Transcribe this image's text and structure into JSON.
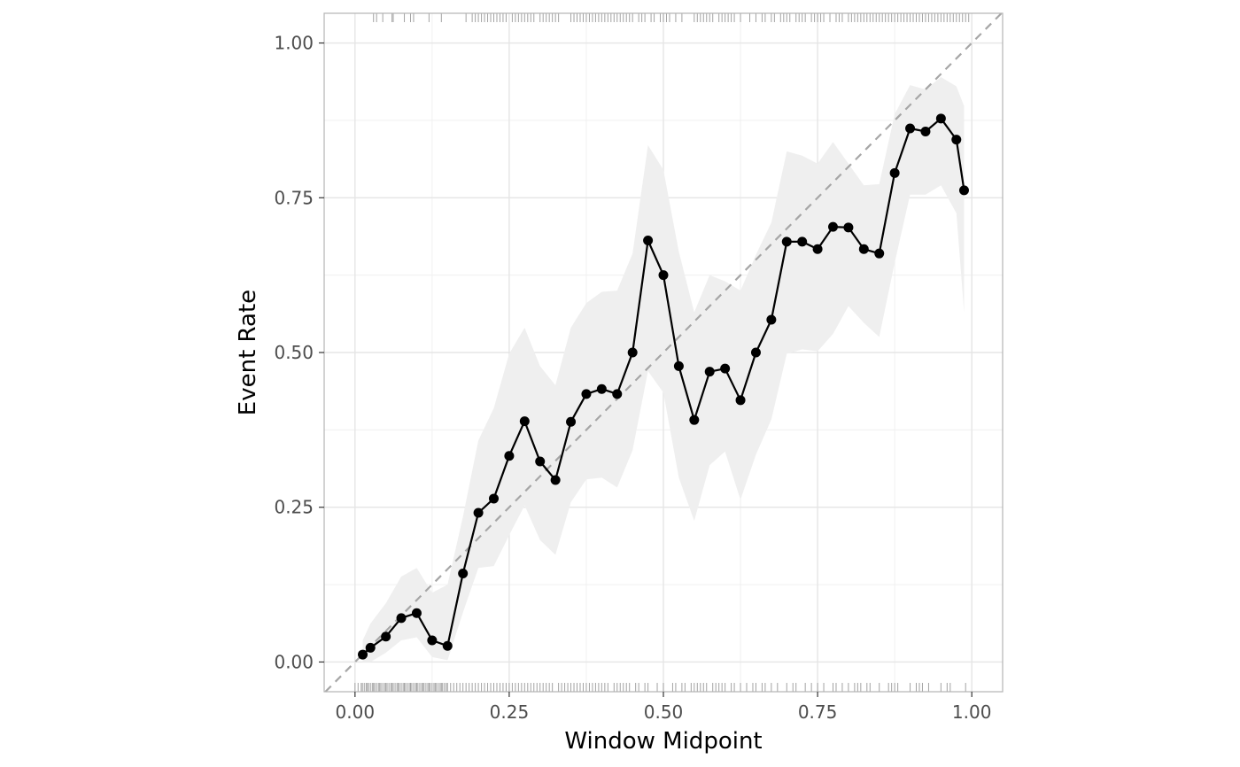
{
  "chart_data": {
    "type": "line",
    "xlabel": "Window Midpoint",
    "ylabel": "Event Rate",
    "xlim": [
      -0.05,
      1.05
    ],
    "ylim": [
      -0.048,
      1.048
    ],
    "x_ticks": [
      0.0,
      0.25,
      0.5,
      0.75,
      1.0
    ],
    "x_tick_labels": [
      "0.00",
      "0.25",
      "0.50",
      "0.75",
      "1.00"
    ],
    "y_ticks": [
      0.0,
      0.25,
      0.5,
      0.75,
      1.0
    ],
    "y_tick_labels": [
      "0.00",
      "0.25",
      "0.50",
      "0.75",
      "1.00"
    ],
    "grid": true,
    "reference_line": {
      "from": [
        0,
        0
      ],
      "to": [
        1,
        1
      ],
      "style": "dashed",
      "color": "#a6a6a6"
    },
    "colors": {
      "line": "#000000",
      "points": "#000000",
      "band": "#efefef",
      "grid": "#e5e5e5",
      "rug": "#a3a3a3",
      "panel_border": "#b3b3b3"
    },
    "series": [
      {
        "x": [
          0.0125,
          0.025,
          0.05,
          0.075,
          0.1,
          0.125,
          0.15,
          0.175,
          0.2,
          0.225,
          0.25,
          0.275,
          0.3,
          0.325,
          0.35,
          0.375,
          0.4,
          0.425,
          0.45,
          0.475,
          0.5,
          0.525,
          0.55,
          0.575,
          0.6,
          0.625,
          0.65,
          0.675,
          0.7,
          0.725,
          0.75,
          0.775,
          0.8,
          0.825,
          0.85,
          0.875,
          0.9,
          0.925,
          0.95,
          0.975,
          0.9875
        ],
        "y": [
          0.012,
          0.023,
          0.041,
          0.071,
          0.079,
          0.035,
          0.026,
          0.143,
          0.241,
          0.264,
          0.333,
          0.389,
          0.324,
          0.294,
          0.388,
          0.433,
          0.441,
          0.433,
          0.5,
          0.681,
          0.625,
          0.478,
          0.391,
          0.469,
          0.474,
          0.423,
          0.5,
          0.553,
          0.679,
          0.679,
          0.667,
          0.703,
          0.702,
          0.667,
          0.66,
          0.79,
          0.862,
          0.857,
          0.878,
          0.844,
          0.762
        ],
        "lower": [
          0.0,
          0.0,
          0.015,
          0.035,
          0.04,
          0.008,
          0.003,
          0.08,
          0.152,
          0.155,
          0.205,
          0.253,
          0.197,
          0.173,
          0.258,
          0.295,
          0.298,
          0.282,
          0.342,
          0.47,
          0.435,
          0.298,
          0.228,
          0.318,
          0.34,
          0.262,
          0.335,
          0.392,
          0.498,
          0.505,
          0.502,
          0.53,
          0.575,
          0.548,
          0.525,
          0.645,
          0.755,
          0.755,
          0.77,
          0.725,
          0.565
        ],
        "upper": [
          0.035,
          0.062,
          0.095,
          0.138,
          0.152,
          0.112,
          0.125,
          0.235,
          0.358,
          0.41,
          0.498,
          0.54,
          0.478,
          0.447,
          0.54,
          0.58,
          0.598,
          0.6,
          0.66,
          0.835,
          0.795,
          0.663,
          0.565,
          0.625,
          0.615,
          0.6,
          0.658,
          0.71,
          0.825,
          0.818,
          0.805,
          0.84,
          0.805,
          0.77,
          0.772,
          0.885,
          0.932,
          0.925,
          0.945,
          0.93,
          0.898
        ]
      }
    ],
    "rug_top": [
      0.03,
      0.035,
      0.045,
      0.06,
      0.062,
      0.08,
      0.09,
      0.095,
      0.12,
      0.14,
      0.18,
      0.19,
      0.195,
      0.2,
      0.205,
      0.21,
      0.215,
      0.22,
      0.225,
      0.23,
      0.235,
      0.24,
      0.245,
      0.255,
      0.26,
      0.265,
      0.27,
      0.275,
      0.28,
      0.285,
      0.29,
      0.3,
      0.305,
      0.31,
      0.315,
      0.32,
      0.325,
      0.33,
      0.35,
      0.355,
      0.36,
      0.365,
      0.37,
      0.375,
      0.38,
      0.385,
      0.39,
      0.395,
      0.4,
      0.405,
      0.41,
      0.415,
      0.42,
      0.425,
      0.43,
      0.435,
      0.44,
      0.445,
      0.45,
      0.46,
      0.465,
      0.47,
      0.48,
      0.485,
      0.495,
      0.5,
      0.505,
      0.51,
      0.52,
      0.53,
      0.55,
      0.555,
      0.56,
      0.565,
      0.57,
      0.575,
      0.58,
      0.59,
      0.595,
      0.6,
      0.605,
      0.61,
      0.615,
      0.625,
      0.64,
      0.65,
      0.66,
      0.665,
      0.675,
      0.68,
      0.69,
      0.695,
      0.7,
      0.705,
      0.715,
      0.72,
      0.725,
      0.73,
      0.74,
      0.745,
      0.75,
      0.755,
      0.76,
      0.77,
      0.78,
      0.785,
      0.79,
      0.8,
      0.805,
      0.81,
      0.815,
      0.82,
      0.825,
      0.83,
      0.835,
      0.84,
      0.845,
      0.85,
      0.855,
      0.86,
      0.865,
      0.87,
      0.875,
      0.88,
      0.885,
      0.89,
      0.895,
      0.9,
      0.905,
      0.91,
      0.915,
      0.92,
      0.925,
      0.93,
      0.935,
      0.94,
      0.945,
      0.95,
      0.955,
      0.96,
      0.965,
      0.97,
      0.975,
      0.98,
      0.985,
      0.99,
      0.995
    ],
    "rug_bottom": [
      0.0,
      0.005,
      0.01,
      0.012,
      0.015,
      0.018,
      0.02,
      0.022,
      0.025,
      0.028,
      0.03,
      0.032,
      0.035,
      0.038,
      0.04,
      0.042,
      0.045,
      0.048,
      0.05,
      0.052,
      0.055,
      0.058,
      0.06,
      0.062,
      0.065,
      0.068,
      0.07,
      0.072,
      0.075,
      0.078,
      0.08,
      0.082,
      0.085,
      0.088,
      0.09,
      0.092,
      0.095,
      0.098,
      0.1,
      0.102,
      0.105,
      0.108,
      0.11,
      0.112,
      0.115,
      0.118,
      0.12,
      0.122,
      0.125,
      0.128,
      0.13,
      0.132,
      0.135,
      0.138,
      0.14,
      0.142,
      0.145,
      0.148,
      0.15,
      0.155,
      0.16,
      0.165,
      0.17,
      0.175,
      0.18,
      0.185,
      0.19,
      0.195,
      0.2,
      0.205,
      0.21,
      0.215,
      0.22,
      0.225,
      0.23,
      0.235,
      0.24,
      0.245,
      0.25,
      0.255,
      0.26,
      0.265,
      0.27,
      0.275,
      0.28,
      0.285,
      0.29,
      0.295,
      0.3,
      0.305,
      0.31,
      0.315,
      0.32,
      0.33,
      0.335,
      0.34,
      0.345,
      0.35,
      0.355,
      0.36,
      0.365,
      0.37,
      0.375,
      0.38,
      0.385,
      0.39,
      0.395,
      0.4,
      0.405,
      0.41,
      0.42,
      0.425,
      0.43,
      0.435,
      0.44,
      0.445,
      0.455,
      0.46,
      0.47,
      0.475,
      0.49,
      0.5,
      0.515,
      0.52,
      0.53,
      0.535,
      0.545,
      0.55,
      0.555,
      0.56,
      0.565,
      0.57,
      0.58,
      0.585,
      0.59,
      0.595,
      0.6,
      0.61,
      0.615,
      0.625,
      0.635,
      0.645,
      0.65,
      0.66,
      0.665,
      0.675,
      0.685,
      0.7,
      0.71,
      0.715,
      0.73,
      0.74,
      0.75,
      0.76,
      0.775,
      0.78,
      0.79,
      0.8,
      0.81,
      0.815,
      0.82,
      0.83,
      0.835,
      0.85,
      0.865,
      0.87,
      0.875,
      0.88,
      0.9,
      0.91,
      0.915,
      0.92,
      0.93,
      0.95,
      0.96,
      0.965,
      0.99
    ]
  }
}
